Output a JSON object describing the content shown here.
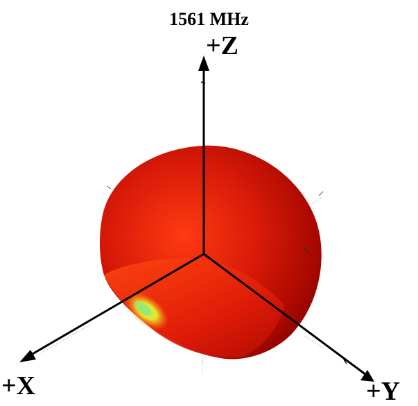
{
  "title": "1561 MHz",
  "axes": {
    "z_label": "+Z",
    "x_label": "+X",
    "y_label": "+Y"
  },
  "colors": {
    "pattern_high": "#e8220c",
    "pattern_mid": "#c41408",
    "pattern_low": "#8e0000",
    "pattern_rim_yellow": "#ffd21a",
    "pattern_rim_green": "#7fe07a",
    "axis": "#000000",
    "background": "#ffffff"
  }
}
